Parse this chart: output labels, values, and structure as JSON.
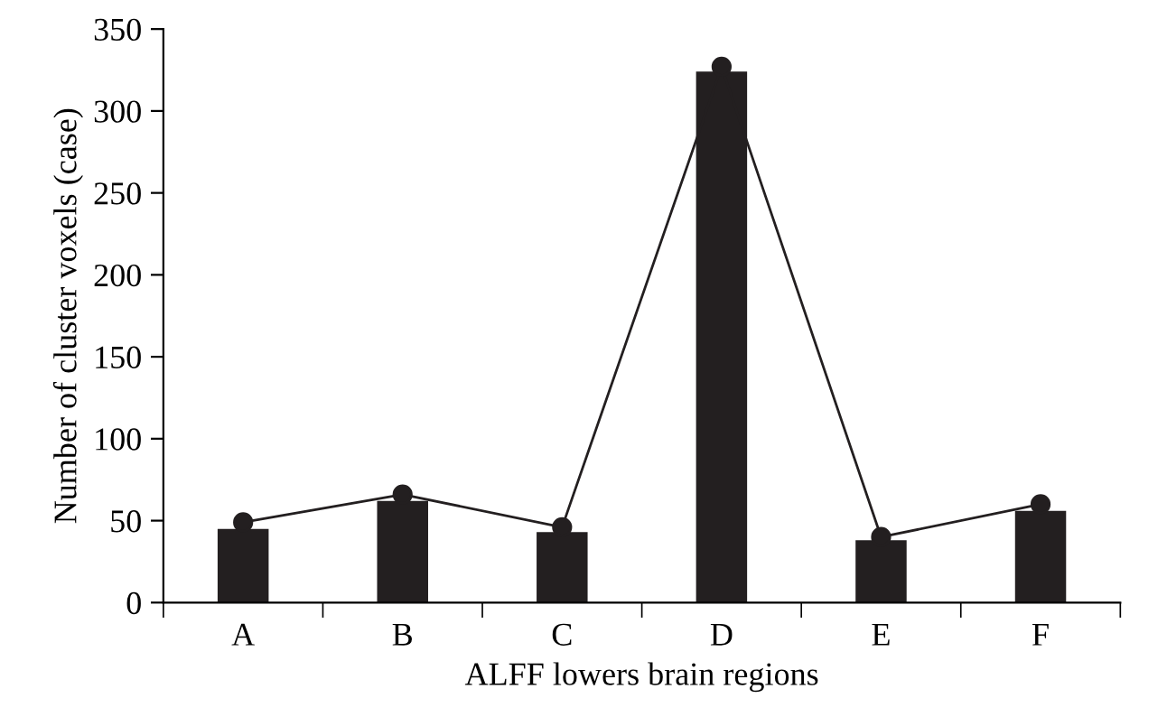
{
  "chart_data": {
    "type": "bar",
    "xlabel": "ALFF lowers brain regions",
    "ylabel": "Number of cluster voxels (case)",
    "categories": [
      "A",
      "B",
      "C",
      "D",
      "E",
      "F"
    ],
    "series": [
      {
        "color": "#231f20",
        "values": [
          45,
          62,
          43,
          324,
          38,
          56
        ]
      },
      {
        "type": "line",
        "color": "#231f20",
        "marker": "circle",
        "values": [
          49,
          66,
          46,
          327,
          40,
          60
        ]
      }
    ],
    "ylim": [
      0,
      350
    ],
    "yticks": [
      0,
      50,
      100,
      150,
      200,
      250,
      300,
      350
    ],
    "grid": false,
    "legend": false
  }
}
